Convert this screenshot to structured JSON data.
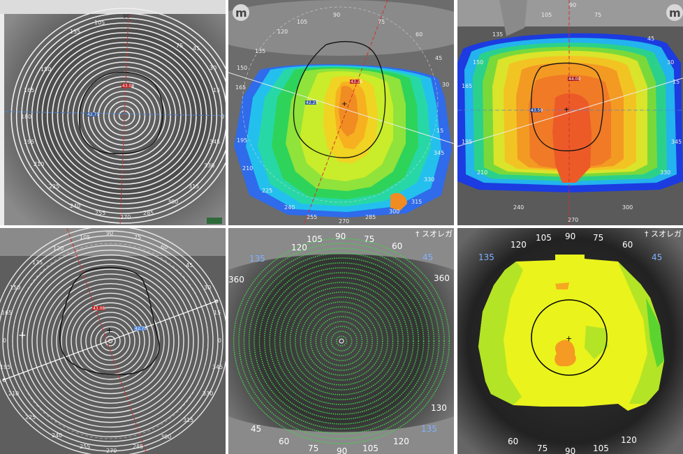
{
  "panels": {
    "p1": {
      "top": "90",
      "right": "0",
      "left": "180",
      "bottom": "270",
      "ticks": [
        "105",
        "75",
        "135",
        "45",
        "150",
        "30",
        "165",
        "15",
        "195",
        "345",
        "210",
        "330",
        "225",
        "315",
        "240",
        "300",
        "255",
        "285"
      ],
      "red_value": "43.08",
      "blue_value": "42.75"
    },
    "p2": {
      "top": "90",
      "bottom": "270",
      "ticks": [
        "105",
        "75",
        "120",
        "60",
        "135",
        "45",
        "150",
        "30",
        "165",
        "15",
        "195",
        "345",
        "210",
        "330",
        "225",
        "315",
        "240",
        "300",
        "255",
        "285"
      ],
      "red_value": "43.25",
      "blue_value": "42.25",
      "logo": "m"
    },
    "p3": {
      "top": "90",
      "bottom": "270",
      "ticks": [
        "105",
        "75",
        "135",
        "45",
        "150",
        "30",
        "165",
        "15",
        "195",
        "345",
        "210",
        "330",
        "240",
        "300"
      ],
      "red_value": "44.00",
      "blue_value": "43.50",
      "logo": "m"
    },
    "p4": {
      "top_ticks": [
        "120",
        "105",
        "90",
        "75",
        "60"
      ],
      "ticks": [
        "135",
        "45",
        "150",
        "30",
        "165",
        "15",
        "195",
        "345",
        "210",
        "330",
        "225",
        "315",
        "240",
        "300",
        "255",
        "285"
      ],
      "left": "0",
      "right": "0",
      "bottom": "270",
      "red_value": "43.08",
      "blue_value": "42.75"
    },
    "p5": {
      "top_ticks": [
        "120",
        "105",
        "90",
        "75",
        "60"
      ],
      "side_ticks": [
        "135",
        "45"
      ],
      "bottom_ticks": [
        "45",
        "60",
        "75",
        "90",
        "105",
        "120",
        "135"
      ],
      "left": "360",
      "right_label": "360",
      "right_bottom": "130",
      "corner": "†  スオレガ"
    },
    "p6": {
      "top_ticks": [
        "120",
        "105",
        "90",
        "75",
        "60"
      ],
      "side_ticks": [
        "135",
        "45"
      ],
      "bottom_ticks": [
        "60",
        "75",
        "90",
        "105",
        "120"
      ],
      "corner": "†  スオレガ"
    }
  },
  "colors": {
    "ring": "#f2f2f2",
    "green_ring": "#44d04c",
    "accent_red": "#d23030",
    "axis_blue": "#4f86d6"
  }
}
